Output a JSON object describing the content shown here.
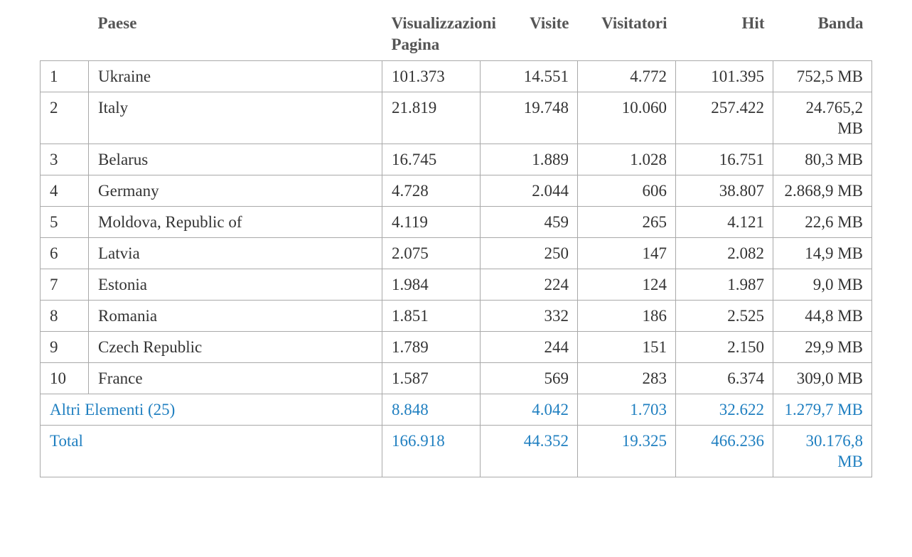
{
  "headers": {
    "rank": "",
    "country": "Paese",
    "pageviews": "Visualizzazioni Pagina",
    "visits": "Visite",
    "visitors": "Visitatori",
    "hits": "Hit",
    "bandwidth": "Banda"
  },
  "rows": [
    {
      "rank": "1",
      "country": "Ukraine",
      "pageviews": "101.373",
      "visits": "14.551",
      "visitors": "4.772",
      "hits": "101.395",
      "bandwidth": "752,5 MB"
    },
    {
      "rank": "2",
      "country": "Italy",
      "pageviews": "21.819",
      "visits": "19.748",
      "visitors": "10.060",
      "hits": "257.422",
      "bandwidth": "24.765,2 MB"
    },
    {
      "rank": "3",
      "country": "Belarus",
      "pageviews": "16.745",
      "visits": "1.889",
      "visitors": "1.028",
      "hits": "16.751",
      "bandwidth": "80,3 MB"
    },
    {
      "rank": "4",
      "country": "Germany",
      "pageviews": "4.728",
      "visits": "2.044",
      "visitors": "606",
      "hits": "38.807",
      "bandwidth": "2.868,9 MB"
    },
    {
      "rank": "5",
      "country": "Moldova, Republic of",
      "pageviews": "4.119",
      "visits": "459",
      "visitors": "265",
      "hits": "4.121",
      "bandwidth": "22,6 MB"
    },
    {
      "rank": "6",
      "country": "Latvia",
      "pageviews": "2.075",
      "visits": "250",
      "visitors": "147",
      "hits": "2.082",
      "bandwidth": "14,9 MB"
    },
    {
      "rank": "7",
      "country": "Estonia",
      "pageviews": "1.984",
      "visits": "224",
      "visitors": "124",
      "hits": "1.987",
      "bandwidth": "9,0 MB"
    },
    {
      "rank": "8",
      "country": "Romania",
      "pageviews": "1.851",
      "visits": "332",
      "visitors": "186",
      "hits": "2.525",
      "bandwidth": "44,8 MB"
    },
    {
      "rank": "9",
      "country": "Czech Republic",
      "pageviews": "1.789",
      "visits": "244",
      "visitors": "151",
      "hits": "2.150",
      "bandwidth": "29,9 MB"
    },
    {
      "rank": "10",
      "country": "France",
      "pageviews": "1.587",
      "visits": "569",
      "visitors": "283",
      "hits": "6.374",
      "bandwidth": "309,0 MB"
    }
  ],
  "others": {
    "label": "Altri Elementi (25)",
    "pageviews": "8.848",
    "visits": "4.042",
    "visitors": "1.703",
    "hits": "32.622",
    "bandwidth": "1.279,7 MB"
  },
  "total": {
    "label": "Total",
    "pageviews": "166.918",
    "visits": "44.352",
    "visitors": "19.325",
    "hits": "466.236",
    "bandwidth": "30.176,8 MB"
  },
  "colors": {
    "link": "#1f7fc0",
    "border": "#a9a9a9",
    "header_text": "#555555",
    "body_text": "#333333"
  }
}
